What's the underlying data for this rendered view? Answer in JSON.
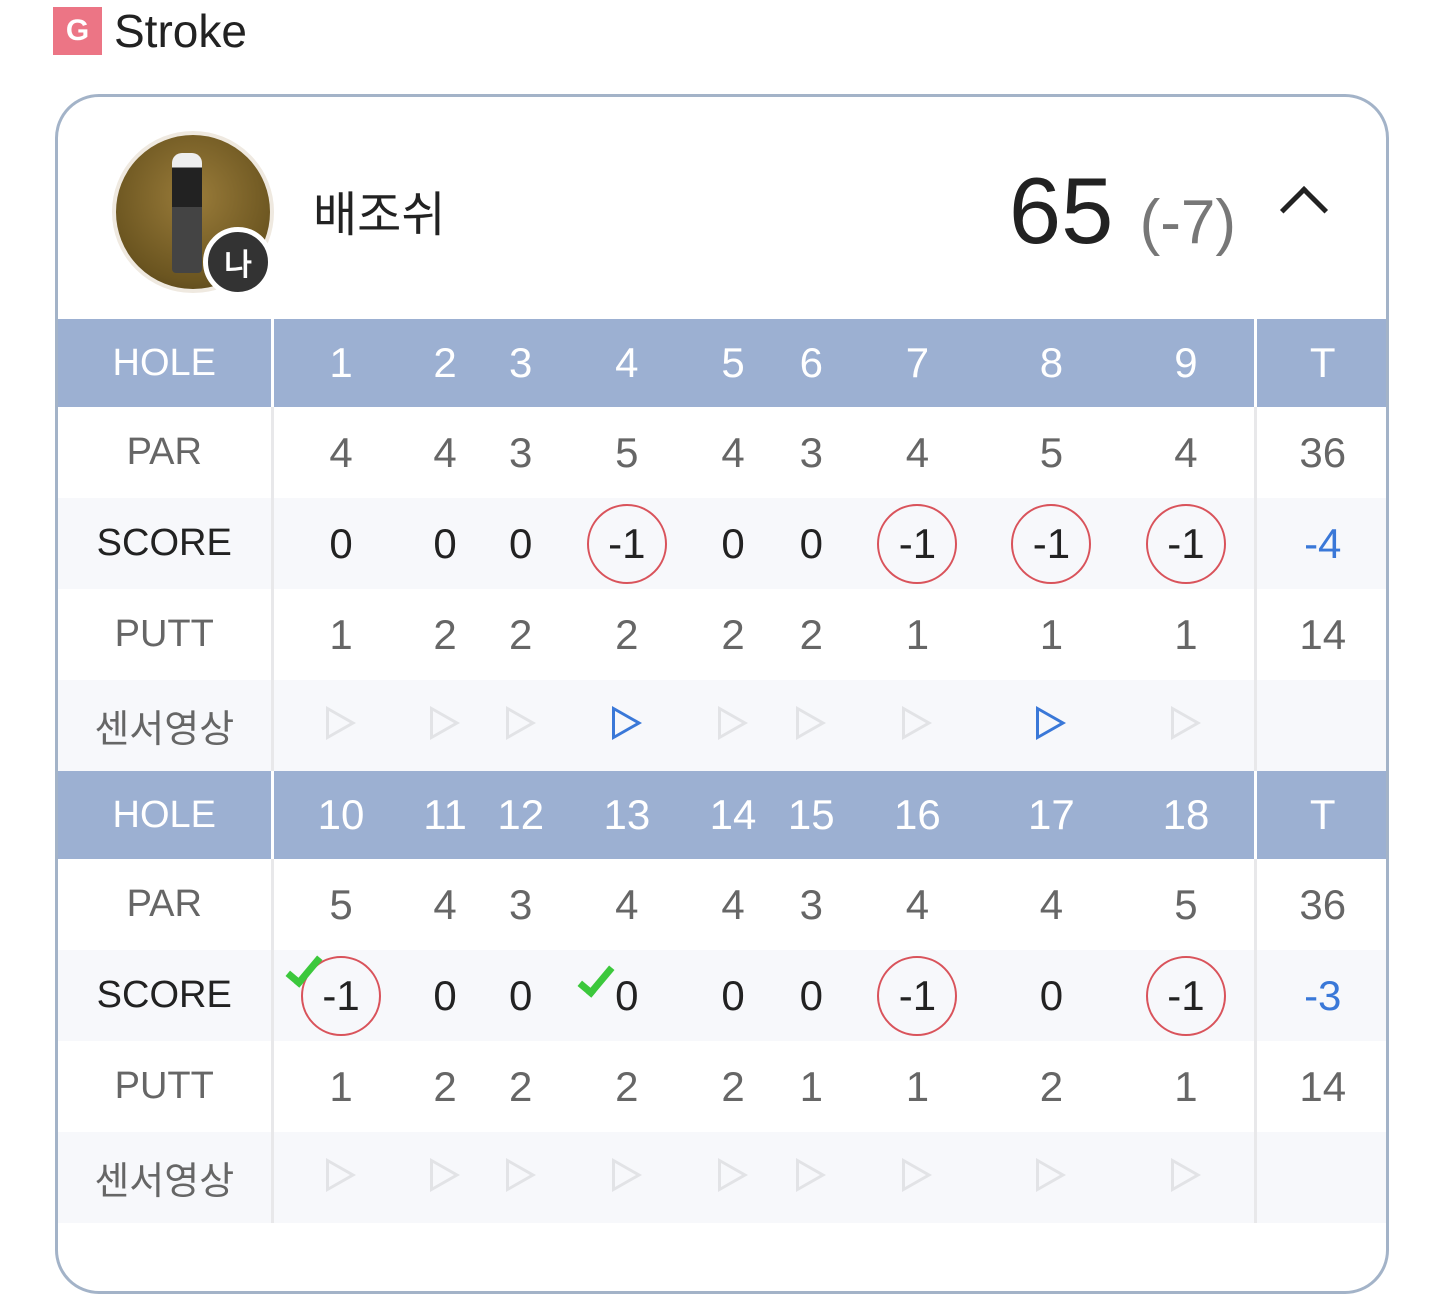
{
  "header": {
    "logo": "G",
    "title": "Stroke"
  },
  "player": {
    "name": "배조쉬",
    "me_badge": "나",
    "total": "65",
    "to_par": "(-7)"
  },
  "colors": {
    "header_bg": "#9cb0d2",
    "circle": "#d9535b",
    "total_score": "#3a78d8",
    "check": "#3cc83c",
    "video_active": "#3a78d8"
  },
  "labels": {
    "hole": "HOLE",
    "par": "PAR",
    "score": "SCORE",
    "putt": "PUTT",
    "video": "센서영상",
    "total": "T"
  },
  "front": {
    "holes": [
      "1",
      "2",
      "3",
      "4",
      "5",
      "6",
      "7",
      "8",
      "9"
    ],
    "par": [
      "4",
      "4",
      "3",
      "5",
      "4",
      "3",
      "4",
      "5",
      "4"
    ],
    "par_total": "36",
    "score": [
      "0",
      "0",
      "0",
      "-1",
      "0",
      "0",
      "-1",
      "-1",
      "-1"
    ],
    "score_total": "-4",
    "putt": [
      "1",
      "2",
      "2",
      "2",
      "2",
      "2",
      "1",
      "1",
      "1"
    ],
    "putt_total": "14",
    "video_active": [
      false,
      false,
      false,
      true,
      false,
      false,
      false,
      true,
      false
    ],
    "checked": [
      false,
      false,
      false,
      false,
      false,
      false,
      false,
      false,
      false
    ]
  },
  "back": {
    "holes": [
      "10",
      "11",
      "12",
      "13",
      "14",
      "15",
      "16",
      "17",
      "18"
    ],
    "par": [
      "5",
      "4",
      "3",
      "4",
      "4",
      "3",
      "4",
      "4",
      "5"
    ],
    "par_total": "36",
    "score": [
      "-1",
      "0",
      "0",
      "0",
      "0",
      "0",
      "-1",
      "0",
      "-1"
    ],
    "score_total": "-3",
    "putt": [
      "1",
      "2",
      "2",
      "2",
      "2",
      "1",
      "1",
      "2",
      "1"
    ],
    "putt_total": "14",
    "video_active": [
      false,
      false,
      false,
      false,
      false,
      false,
      false,
      false,
      false
    ],
    "checked": [
      true,
      false,
      false,
      true,
      false,
      false,
      false,
      false,
      false
    ]
  }
}
